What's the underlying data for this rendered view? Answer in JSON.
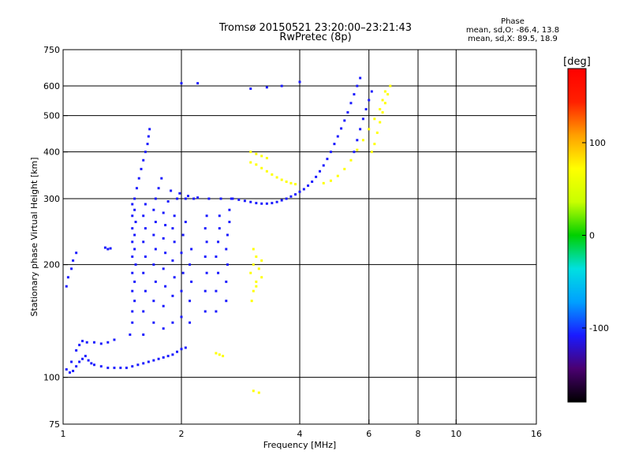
{
  "header": {
    "title_line1": "Tromsø 20150521 23:20:00–23:21:43",
    "title_line2": "RwPretec (8p)"
  },
  "phase_note": {
    "title": "Phase",
    "line1": "mean, sd,O: -86.4, 13.8",
    "line2": "mean, sd,X:  89.5, 18.9"
  },
  "colorbar": {
    "label": "[deg]",
    "ticks": [
      {
        "value": 100,
        "label": "100"
      },
      {
        "value": 0,
        "label": "0"
      },
      {
        "value": -100,
        "label": "-100"
      }
    ],
    "range": [
      -180,
      180
    ],
    "colormap": [
      "#000000",
      "#4a0070",
      "#1a1aff",
      "#00a0ff",
      "#00e0e0",
      "#00d000",
      "#c8ff00",
      "#ffff00",
      "#ffa000",
      "#ff2000",
      "#ff0000"
    ]
  },
  "chart_data": {
    "type": "scatter",
    "title": "Tromsø 20150521 23:20:00–23:21:43",
    "subtitle": "RwPretec (8p)",
    "xlabel": "Frequency [MHz]",
    "ylabel": "Stationary phase Virtual Height [km]",
    "xscale": "log",
    "yscale": "log",
    "xlim": [
      1,
      16
    ],
    "ylim": [
      75,
      750
    ],
    "x_ticks": [
      1,
      2,
      4,
      6,
      8,
      10,
      16
    ],
    "x_tick_labels": [
      "1",
      "2",
      "4",
      "6",
      "8",
      "10",
      "16"
    ],
    "y_ticks": [
      75,
      100,
      200,
      300,
      400,
      500,
      600,
      750
    ],
    "y_tick_labels": [
      "75",
      "100",
      "200",
      "300",
      "400",
      "500",
      "600",
      "750"
    ],
    "x_gridlines": [
      2,
      4,
      6,
      8,
      10
    ],
    "y_gridlines": [
      100,
      200,
      300,
      400,
      500,
      600
    ],
    "grid": true,
    "color_encoding": "phase [deg]",
    "series": [
      {
        "name": "",
        "points": [
          [
            1.02,
            105
          ],
          [
            1.04,
            103
          ],
          [
            1.06,
            104
          ],
          [
            1.08,
            107
          ],
          [
            1.1,
            110
          ],
          [
            1.12,
            112
          ],
          [
            1.14,
            114
          ],
          [
            1.16,
            111
          ],
          [
            1.18,
            109
          ],
          [
            1.2,
            108
          ],
          [
            1.25,
            107
          ],
          [
            1.3,
            106
          ],
          [
            1.35,
            106
          ],
          [
            1.4,
            106
          ],
          [
            1.45,
            106
          ],
          [
            1.5,
            107
          ],
          [
            1.55,
            108
          ],
          [
            1.6,
            109
          ],
          [
            1.65,
            110
          ],
          [
            1.7,
            111
          ],
          [
            1.75,
            112
          ],
          [
            1.8,
            113
          ],
          [
            1.85,
            114
          ],
          [
            1.9,
            115
          ],
          [
            1.95,
            117
          ],
          [
            2.0,
            119
          ],
          [
            2.05,
            120
          ],
          [
            1.05,
            110
          ],
          [
            1.08,
            118
          ],
          [
            1.1,
            122
          ],
          [
            1.12,
            125
          ],
          [
            1.15,
            124
          ],
          [
            1.2,
            124
          ],
          [
            1.25,
            123
          ],
          [
            1.3,
            124
          ],
          [
            1.35,
            126
          ],
          [
            1.02,
            175
          ],
          [
            1.03,
            185
          ],
          [
            1.05,
            195
          ],
          [
            1.06,
            205
          ],
          [
            1.08,
            215
          ],
          [
            1.28,
            222
          ],
          [
            1.3,
            220
          ],
          [
            1.32,
            221
          ],
          [
            1.48,
            130
          ],
          [
            1.5,
            140
          ],
          [
            1.5,
            150
          ],
          [
            1.52,
            160
          ],
          [
            1.5,
            170
          ],
          [
            1.52,
            180
          ],
          [
            1.5,
            190
          ],
          [
            1.53,
            200
          ],
          [
            1.5,
            210
          ],
          [
            1.52,
            220
          ],
          [
            1.5,
            230
          ],
          [
            1.52,
            240
          ],
          [
            1.5,
            250
          ],
          [
            1.53,
            260
          ],
          [
            1.5,
            270
          ],
          [
            1.52,
            280
          ],
          [
            1.5,
            290
          ],
          [
            1.52,
            300
          ],
          [
            1.54,
            320
          ],
          [
            1.56,
            340
          ],
          [
            1.58,
            360
          ],
          [
            1.6,
            380
          ],
          [
            1.62,
            400
          ],
          [
            1.64,
            420
          ],
          [
            1.65,
            440
          ],
          [
            1.66,
            460
          ],
          [
            1.6,
            130
          ],
          [
            1.6,
            150
          ],
          [
            1.62,
            170
          ],
          [
            1.6,
            190
          ],
          [
            1.62,
            210
          ],
          [
            1.6,
            230
          ],
          [
            1.62,
            250
          ],
          [
            1.6,
            270
          ],
          [
            1.62,
            290
          ],
          [
            1.7,
            140
          ],
          [
            1.7,
            160
          ],
          [
            1.72,
            180
          ],
          [
            1.7,
            200
          ],
          [
            1.72,
            220
          ],
          [
            1.7,
            240
          ],
          [
            1.72,
            260
          ],
          [
            1.7,
            280
          ],
          [
            1.72,
            300
          ],
          [
            1.75,
            320
          ],
          [
            1.78,
            340
          ],
          [
            1.8,
            135
          ],
          [
            1.8,
            155
          ],
          [
            1.82,
            175
          ],
          [
            1.8,
            195
          ],
          [
            1.82,
            215
          ],
          [
            1.8,
            235
          ],
          [
            1.82,
            255
          ],
          [
            1.8,
            275
          ],
          [
            1.85,
            295
          ],
          [
            1.88,
            315
          ],
          [
            1.9,
            140
          ],
          [
            1.9,
            165
          ],
          [
            1.92,
            185
          ],
          [
            1.9,
            205
          ],
          [
            1.92,
            230
          ],
          [
            1.9,
            250
          ],
          [
            1.92,
            270
          ],
          [
            1.95,
            300
          ],
          [
            1.98,
            310
          ],
          [
            2.0,
            145
          ],
          [
            2.0,
            170
          ],
          [
            2.02,
            190
          ],
          [
            2.0,
            215
          ],
          [
            2.02,
            240
          ],
          [
            2.05,
            260
          ],
          [
            2.05,
            300
          ],
          [
            2.08,
            305
          ],
          [
            2.1,
            140
          ],
          [
            2.1,
            160
          ],
          [
            2.12,
            180
          ],
          [
            2.1,
            200
          ],
          [
            2.12,
            220
          ],
          [
            2.15,
            300
          ],
          [
            2.2,
            302
          ],
          [
            2.3,
            150
          ],
          [
            2.3,
            170
          ],
          [
            2.32,
            190
          ],
          [
            2.3,
            210
          ],
          [
            2.32,
            230
          ],
          [
            2.3,
            250
          ],
          [
            2.32,
            270
          ],
          [
            2.35,
            300
          ],
          [
            2.45,
            150
          ],
          [
            2.45,
            170
          ],
          [
            2.48,
            190
          ],
          [
            2.45,
            210
          ],
          [
            2.48,
            230
          ],
          [
            2.5,
            250
          ],
          [
            2.5,
            270
          ],
          [
            2.52,
            300
          ],
          [
            2.6,
            160
          ],
          [
            2.6,
            180
          ],
          [
            2.62,
            200
          ],
          [
            2.6,
            220
          ],
          [
            2.62,
            240
          ],
          [
            2.65,
            260
          ],
          [
            2.65,
            280
          ],
          [
            2.68,
            300
          ],
          [
            2.7,
            300
          ],
          [
            2.8,
            298
          ],
          [
            2.9,
            296
          ],
          [
            3.0,
            294
          ],
          [
            3.1,
            292
          ],
          [
            3.2,
            291
          ],
          [
            3.3,
            291
          ],
          [
            3.4,
            292
          ],
          [
            3.5,
            294
          ],
          [
            3.6,
            297
          ],
          [
            3.7,
            300
          ],
          [
            3.8,
            304
          ],
          [
            3.9,
            308
          ],
          [
            4.0,
            313
          ],
          [
            4.1,
            318
          ],
          [
            4.2,
            325
          ],
          [
            4.3,
            333
          ],
          [
            4.4,
            343
          ],
          [
            4.5,
            355
          ],
          [
            4.6,
            368
          ],
          [
            4.7,
            383
          ],
          [
            4.8,
            400
          ],
          [
            4.9,
            420
          ],
          [
            5.0,
            440
          ],
          [
            5.1,
            462
          ],
          [
            5.2,
            485
          ],
          [
            5.3,
            510
          ],
          [
            5.4,
            540
          ],
          [
            5.5,
            570
          ],
          [
            5.6,
            600
          ],
          [
            5.7,
            630
          ],
          [
            2.0,
            610
          ],
          [
            2.2,
            610
          ],
          [
            3.0,
            590
          ],
          [
            3.3,
            595
          ],
          [
            3.6,
            600
          ],
          [
            4.0,
            615
          ],
          [
            5.5,
            400
          ],
          [
            5.6,
            430
          ],
          [
            5.7,
            460
          ],
          [
            5.8,
            490
          ],
          [
            5.9,
            520
          ],
          [
            6.0,
            550
          ],
          [
            6.1,
            580
          ]
        ]
      },
      {
        "name": "",
        "points": [
          [
            3.0,
            375
          ],
          [
            3.1,
            370
          ],
          [
            3.2,
            362
          ],
          [
            3.3,
            355
          ],
          [
            3.4,
            348
          ],
          [
            3.5,
            342
          ],
          [
            3.6,
            337
          ],
          [
            3.7,
            333
          ],
          [
            3.8,
            330
          ],
          [
            3.9,
            328
          ],
          [
            3.0,
            400
          ],
          [
            3.1,
            395
          ],
          [
            3.2,
            390
          ],
          [
            3.3,
            385
          ],
          [
            3.02,
            160
          ],
          [
            3.05,
            170
          ],
          [
            3.1,
            180
          ],
          [
            3.0,
            190
          ],
          [
            3.05,
            200
          ],
          [
            3.1,
            210
          ],
          [
            3.05,
            220
          ],
          [
            3.15,
            195
          ],
          [
            3.2,
            185
          ],
          [
            3.1,
            175
          ],
          [
            3.2,
            205
          ],
          [
            2.45,
            116
          ],
          [
            2.5,
            115
          ],
          [
            2.55,
            114
          ],
          [
            3.05,
            92
          ],
          [
            3.15,
            91
          ],
          [
            4.6,
            330
          ],
          [
            4.8,
            335
          ],
          [
            5.0,
            345
          ],
          [
            5.2,
            360
          ],
          [
            5.4,
            380
          ],
          [
            5.6,
            405
          ],
          [
            5.8,
            430
          ],
          [
            6.0,
            460
          ],
          [
            6.2,
            490
          ],
          [
            6.4,
            520
          ],
          [
            6.5,
            550
          ],
          [
            6.6,
            580
          ],
          [
            6.1,
            400
          ],
          [
            6.2,
            420
          ],
          [
            6.3,
            450
          ],
          [
            6.4,
            480
          ],
          [
            6.5,
            510
          ],
          [
            6.6,
            540
          ],
          [
            6.7,
            570
          ],
          [
            6.8,
            600
          ]
        ]
      }
    ]
  }
}
